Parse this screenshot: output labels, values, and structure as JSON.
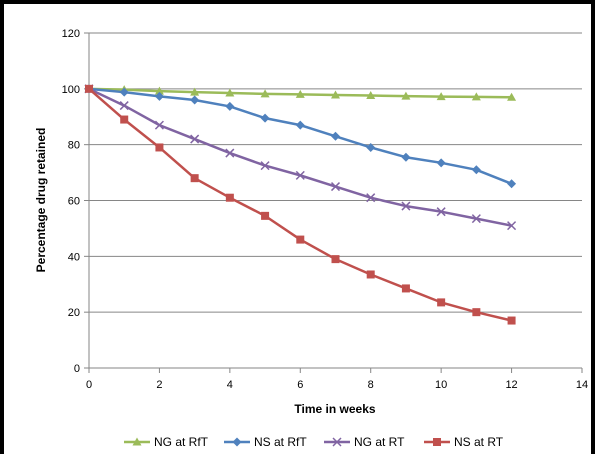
{
  "chart_data": {
    "type": "line",
    "xlabel": "Time in weeks",
    "ylabel": "Percentage drug retained",
    "xlim": [
      0,
      14
    ],
    "ylim": [
      0,
      120
    ],
    "xticks": [
      "0",
      "2",
      "4",
      "6",
      "8",
      "10",
      "12",
      "14"
    ],
    "yticks": [
      "0",
      "20",
      "40",
      "60",
      "80",
      "100",
      "120"
    ],
    "grid": "horizontal",
    "legend_position": "bottom",
    "x": [
      0,
      1,
      2,
      3,
      4,
      5,
      6,
      7,
      8,
      9,
      10,
      11,
      12
    ],
    "series": [
      {
        "name": "NG at RfT",
        "color": "#9bbb59",
        "marker": "triangle",
        "values": [
          100,
          99.7,
          99.2,
          98.8,
          98.5,
          98.2,
          98.0,
          97.8,
          97.6,
          97.4,
          97.2,
          97.1,
          97.0
        ]
      },
      {
        "name": "NS at RfT",
        "color": "#4f81bd",
        "marker": "diamond",
        "values": [
          100,
          98.8,
          97.3,
          96.0,
          93.7,
          89.5,
          87.0,
          83.0,
          79.0,
          75.5,
          73.5,
          71.0,
          66.0
        ]
      },
      {
        "name": "NG at RT",
        "color": "#8064a2",
        "marker": "x",
        "values": [
          100,
          94.0,
          87.0,
          82.0,
          77.0,
          72.5,
          69.0,
          65.0,
          61.0,
          58.0,
          56.0,
          53.5,
          51.0
        ]
      },
      {
        "name": "NS at RT",
        "color": "#c0504d",
        "marker": "square",
        "values": [
          100,
          89.0,
          79.0,
          68.0,
          61.0,
          54.5,
          46.0,
          39.0,
          33.5,
          28.5,
          23.5,
          20.0,
          17.0
        ]
      }
    ]
  }
}
